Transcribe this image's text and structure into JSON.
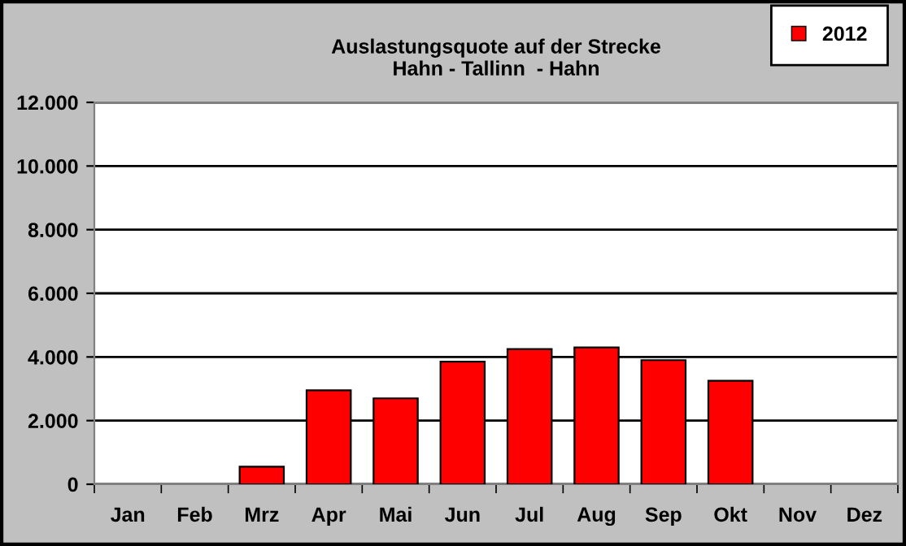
{
  "chart_data": {
    "type": "bar",
    "title": "Auslastungsquote auf der Strecke\nHahn - Tallinn  - Hahn",
    "categories": [
      "Jan",
      "Feb",
      "Mrz",
      "Apr",
      "Mai",
      "Jun",
      "Jul",
      "Aug",
      "Sep",
      "Okt",
      "Nov",
      "Dez"
    ],
    "series": [
      {
        "name": "2012",
        "color": "#ff0000",
        "values": [
          null,
          null,
          550,
          2950,
          2700,
          3850,
          4250,
          4300,
          3900,
          3250,
          null,
          null
        ]
      }
    ],
    "ylim": [
      0,
      12000
    ],
    "yticks": [
      0,
      {
        "value": 2000,
        "label": "2.000"
      },
      {
        "value": 4000,
        "label": "4.000"
      },
      {
        "value": 6000,
        "label": "6.000"
      },
      {
        "value": 8000,
        "label": "8.000"
      },
      {
        "value": 10000,
        "label": "10.000"
      },
      {
        "value": 12000,
        "label": "12.000"
      }
    ],
    "grid": "y",
    "legend": "top right"
  }
}
